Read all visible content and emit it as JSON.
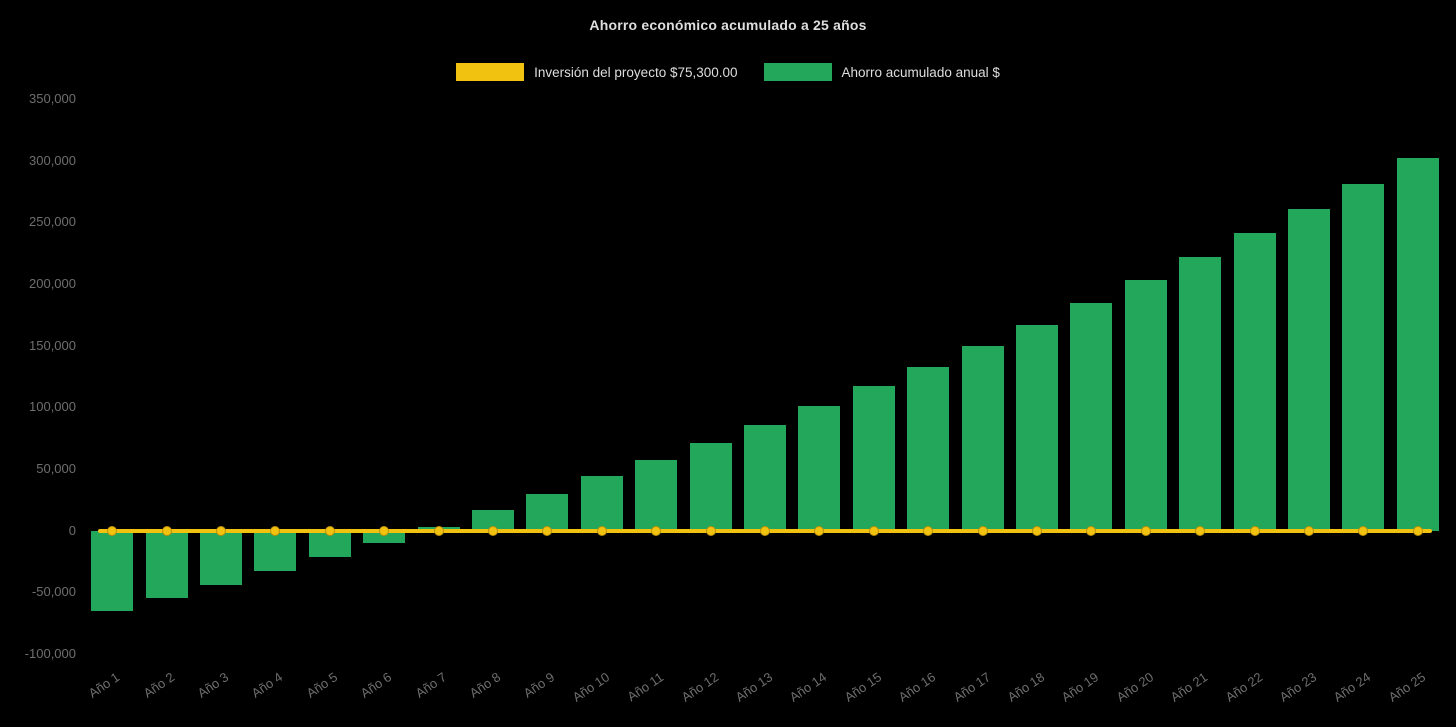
{
  "chart_data": {
    "type": "bar",
    "title": "Ahorro económico acumulado a 25 años",
    "categories": [
      "Año 1",
      "Año 2",
      "Año 3",
      "Año 4",
      "Año 5",
      "Año 6",
      "Año 7",
      "Año 8",
      "Año 9",
      "Año 10",
      "Año 11",
      "Año 12",
      "Año 13",
      "Año 14",
      "Año 15",
      "Año 16",
      "Año 17",
      "Año 18",
      "Año 19",
      "Año 20",
      "Año 21",
      "Año 22",
      "Año 23",
      "Año 24",
      "Año 25"
    ],
    "series": [
      {
        "name": "Inversión del proyecto $75,300.00",
        "type": "line",
        "color": "#F2C211",
        "values": [
          0,
          0,
          0,
          0,
          0,
          0,
          0,
          0,
          0,
          0,
          0,
          0,
          0,
          0,
          0,
          0,
          0,
          0,
          0,
          0,
          0,
          0,
          0,
          0,
          0
        ]
      },
      {
        "name": "Ahorro acumulado anual $",
        "type": "bar",
        "color": "#23A75B",
        "values": [
          -65000,
          -55000,
          -44000,
          -33000,
          -21000,
          -10000,
          3000,
          17000,
          30000,
          44000,
          57000,
          71000,
          86000,
          101000,
          117000,
          133000,
          150000,
          167000,
          185000,
          203000,
          222000,
          241000,
          261000,
          281000,
          302000
        ]
      }
    ],
    "xlabel": "",
    "ylabel": "",
    "ylim": [
      -100000,
      350000
    ],
    "ytick_step": 50000,
    "grid": false,
    "legend_position": "top",
    "background": "#000000"
  },
  "colors": {
    "background": "#000000",
    "title_text": "#DEDEDE",
    "legend_text": "#DEDEDE",
    "tick_text": "#6E6E6E",
    "bar_green": "#23A75B",
    "line_yellow": "#F2C211"
  }
}
